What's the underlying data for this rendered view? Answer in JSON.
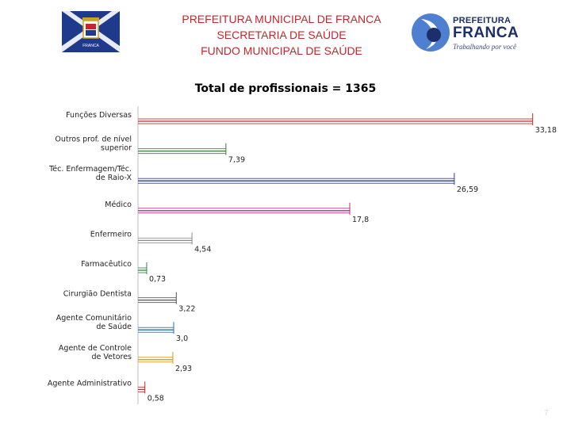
{
  "header": {
    "line1": "PREFEITURA MUNICIPAL DE FRANCA",
    "line2": "SECRETARIA DE SAÚDE",
    "line3": "FUNDO MUNICIPAL DE SAÚDE"
  },
  "crest": {
    "label": "FRANCA"
  },
  "logo": {
    "top": "PREFEITURA",
    "main": "FRANCA",
    "slogan": "Trabalhando por você"
  },
  "page_number": "7",
  "chart_data": {
    "type": "bar",
    "orientation": "horizontal",
    "title": "Total de profissionais = 1365",
    "xlabel": "",
    "ylabel": "",
    "xlim": [
      0,
      35
    ],
    "grid": false,
    "legend": "none",
    "categories": [
      "Funções Diversas",
      "Outros prof. de nível superior",
      "Téc. Enfermagem/Téc. de Raio-X",
      "Médico",
      "Enfermeiro",
      "Farmacêutico",
      "Cirurgião Dentista",
      "Agente Comunitário de Saúde",
      "Agente de Controle de Vetores",
      "Agente Administrativo"
    ],
    "values": [
      33.18,
      7.39,
      26.59,
      17.8,
      4.54,
      0.73,
      3.22,
      3.0,
      2.93,
      0.58
    ],
    "value_labels": [
      "33,18",
      "7,39",
      "26,59",
      "17,8",
      "4,54",
      "0,73",
      "3,22",
      "3,0",
      "2,93",
      "0,58"
    ],
    "colors": [
      "#c0282d",
      "#3a7a3a",
      "#2b3a9a",
      "#b02a8a",
      "#8a8a8a",
      "#2e8a3e",
      "#555555",
      "#2a6fb0",
      "#d49a10",
      "#c0282d"
    ]
  }
}
